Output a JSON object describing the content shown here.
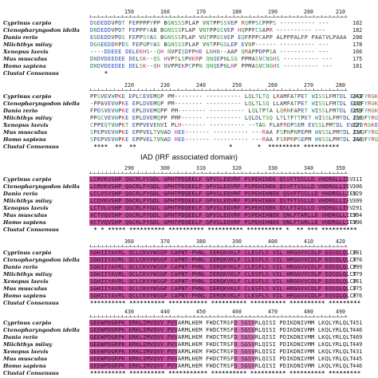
{
  "figure": {
    "domain_label": "IAD (IRF associated domain)",
    "colors": {
      "domain_highlight": "#c9479f",
      "domain_highlight_light": "#e07cc0",
      "seq_red": "#d6313a",
      "seq_blue": "#2c4fc4",
      "seq_green": "#2f9a3a",
      "seq_magenta": "#c42fa8",
      "seq_cyan": "#1c9aa8",
      "ruler": "#999999"
    },
    "blocks": [
      {
        "ruler": [
          "150",
          "160",
          "170",
          "180",
          "190",
          "200",
          "210"
        ],
        "rows": [
          {
            "species": "Cyprinus carpio",
            "seq": "DGDEDDVPDT FEPPPPYPP BGNSSSPLAP VNTPPSSVEP RQPPSCPPPS ---------- ---",
            "pos": "182"
          },
          {
            "species": "Ctenopharyngodon idella",
            "seq": "DNDEDDVPDT FEPPFYAB BGNSSSFLAP VNTPPGSVEP HQPPFCSAPR ---------- ---",
            "pos": "182"
          },
          {
            "species": "Danio rerio",
            "seq": "EGDEDDVPDS FEPPSYAS BGNSSSPLAP VNTPPGSVEP EQFPPPCAPP ALPPPALFP PAATVLPAAA",
            "pos": "200"
          },
          {
            "species": "Miichthys miiuy",
            "seq": "DGGEEDDRPDS FEPGPYAS BGNSSSPLAP VNTPPGSLEP EVNP------ ---------- ---",
            "pos": "178"
          },
          {
            "species": "Xenopus laevis",
            "seq": "----DDEEE DELEKHS--QH NVPISDFPHE LNHN--AAP QRAPPDPPSA ---------- ---",
            "pos": "166"
          },
          {
            "species": "Mus musculus",
            "seq": "DNDVDEEDEE DELSK--QS HVPTLSPVKRP QNQEPNLSG PPMASVCNGHS ---------- ---",
            "pos": "175"
          },
          {
            "species": "Homo sapiens",
            "seq": "DNDVDEEDEE DELSK--QH NVPPEKPCPPN QNQEPNLHF PPMASVCNGHS ---------- ---",
            "pos": "181"
          },
          {
            "species": "Clustal Consensus",
            "seq": "    *                                                              ",
            "pos": ""
          }
        ]
      },
      {
        "ruler": [
          "220",
          "230",
          "240",
          "250",
          "260",
          "270",
          "280"
        ],
        "rows": [
          {
            "species": "Cyprinus carpio",
            "seq": "PPSVEVWPKE EPLCEVEMQP PM-------- ---------- LQLTLTQ LRAMFATPET WISSLFMTDL EVQFYRGKE",
            "pos": "241"
          },
          {
            "species": "Ctenopharyngodon idella",
            "seq": "-PPAVEVWPKE EPLDVEMQP PM-------- ---------- LQLTLSQ LLAMFATPET WISSLFMTDL EVQFYRGKE",
            "pos": "236"
          },
          {
            "species": "Danio rerio",
            "seq": "FPDSVEVWPKE EPLDVEMQPP PM-------- ---------- LQLTPTA LQRNFAPET WISSLFMTDL EVQFYRGKE",
            "pos": "259"
          },
          {
            "species": "Miichthys miiuy",
            "seq": "PPGCVEVWPKE EPLDVEMQPP PMF------ ---------- LQLDLTSQ LTLTFTTPET WISSLFMTDL EVQFYRGKE",
            "pos": "239"
          },
          {
            "species": "Xenopus laevis",
            "seq": "CPPEQTVWPKT EPPVEVENVI PLH------- ---------- --TAG FLAFRDPSEM EVSSLPMTDL EVQFYRGKE",
            "pos": "221"
          },
          {
            "species": "Mus musculus",
            "seq": "SPEPVEVWPKE EPPVELTVNAD HEE------- ---------- ---RAA FSPNPNPEPM WVSSLPMTDL EVQFYRGKE",
            "pos": "234"
          },
          {
            "species": "Homo sapiens",
            "seq": "SPEPVEVWPKE EPPVELTVNAD HEE------- ---------- ---RAA FSRPRPSEPM WVSSLPMTDL EVQFYRGKE",
            "pos": "240"
          },
          {
            "species": "Clustal Consensus",
            "seq": " ****  **  **                          *       *  ********* **********",
            "pos": ""
          }
        ]
      },
      {
        "ruler": [
          "290",
          "300",
          "310",
          "320",
          "330",
          "340",
          "350"
        ],
        "rows": [
          {
            "species": "Cyprinus carpio",
            "seq": "LCMVKVSHP QGCRLFYGDL GPHTPDQEELF GPVSLEQVRF PSPEHINEK QSVFTSSLLD VHDRGLLIEV",
            "pos": "311"
          },
          {
            "species": "Ctenopharyngodon idella",
            "seq": "LCMVKVSHP QGCRLFYGDL GPHTPDQEELF GPVSLEQVRF PSPEHINEK QSVFTSSLLD VHDRGLLIEV",
            "pos": "306"
          },
          {
            "species": "Danio rerio",
            "seq": "LCLVSVSHP QGCRLFYGDL GPHTPDQEELF GPVSLEQVRF PSPEHIHNEK QSVFTSSLLD VHDRGLLIEV",
            "pos": "329"
          },
          {
            "species": "Miichthys miiuy",
            "seq": "LCQVKVSHP QGCRLFYGDL GPHTPDQEELF GPVSLEQVRF PSPEHINEK QSTFTSSLLD VHDRGLLIEV",
            "pos": "309"
          },
          {
            "species": "Xenopus laevis",
            "seq": "LCTVLVSHP QGCRLFYGDL GPHTPDQEELF GPVSLEQVRF PSPEHINEK QSLFTASLLD VHDRGLLIEV",
            "pos": "291"
          },
          {
            "species": "Mus musculus",
            "seq": "VCTVQVSHP QGCRLFYGDL GPHTPDQEELF GPVSLEQVRF PSPEHIHNEK QNLFTARLLD VHDRGLLIEV",
            "pos": "304"
          },
          {
            "species": "Homo sapiens",
            "seq": "VCTVQVSHP QGCRLFYGDL GPHTPDQEELF GPVSLEQVRF PSPEHIHNEK QNLFTARLLD VHDRGLLIEV",
            "pos": "306"
          },
          {
            "species": "Clustal Consensus",
            "seq": " * * ***** ********** ********** ********** ********** *  ** *** **********",
            "pos": ""
          }
        ]
      },
      {
        "ruler": [
          "360",
          "370",
          "380",
          "390",
          "400",
          "410",
          "420"
        ],
        "rows": [
          {
            "species": "Cyprinus carpio",
            "seq": "SGHIIYAVRL QCLCKVYWSGP CAPNT-PHNL IERQKVKLF CLESFLS VIL HRGGVVCDLP EQSQLQLCF",
            "pos": "381"
          },
          {
            "species": "Ctenopharyngodon idella",
            "seq": "SGHIIYAVRL QCLCKVYWSGP CAPNT-PHNL IERQKVKLF CLESFLS VIL HRGGVVCDLP EQSQLQLCF",
            "pos": "376"
          },
          {
            "species": "Danio rerio",
            "seq": "SGHIIYAVRL QCLCKVYWSGP CAPNT-PHNL IERQKVKLF CLESFLS VIL HRGGVVCDLP EQSQLQLCF",
            "pos": "399"
          },
          {
            "species": "Miichthys miiuy",
            "seq": "SGHIIYAVRL QCLCKVYWSGP CAPNT-PHNL IERQKVKLF CLESFLS VIL HRGGVVCDLP EQSQLQLCF",
            "pos": "379"
          },
          {
            "species": "Xenopus laevis",
            "seq": "SGHIIYAVRL QCLCKVYWSGP CAPNT-PHNL IERQKVKLF CLESFLS VIL HRGGVVCDLP EQSQLQLCF",
            "pos": "361"
          },
          {
            "species": "Mus musculus",
            "seq": "SGHIIYAVRL QCLCKVYWSGP CAPNT-PHNL IERQKVKLF CLESFLS VIL HRGGVVCDLP EQSQLQLCF",
            "pos": "375"
          },
          {
            "species": "Homo sapiens",
            "seq": "SGHIIYAVRL QCLCKVYWSGP CAPNT-PHNL IERQKVKLF CLESFLS VIL HRGGVVCDLP EQSQLQLCF",
            "pos": "376"
          },
          {
            "species": "Clustal Consensus",
            "seq": "********** ********** *********** ********** ********** ********** *********",
            "pos": ""
          }
        ]
      },
      {
        "ruler": [
          "430",
          "440",
          "450",
          "460",
          "470",
          "480",
          "490"
        ],
        "rows": [
          {
            "species": "Cyprinus carpio",
            "seq": "GEEWPDGRPK ERKLIMVQVV PVVARMLHEM FHDCTRSFD SGSVRLQISI PDIKDNIVMM LKQLYRLQLT",
            "pos": "451"
          },
          {
            "species": "Ctenopharyngodon idella",
            "seq": "GEEWPDGRPK ERKLIMVQVV PVVARMLHEM FHDCTRSFD SGSVRLQISI PDIKDNIVMM LKQLYRLQLT",
            "pos": "446"
          },
          {
            "species": "Danio rerio",
            "seq": "GEEWPDGRPK ERKLIMVQVV PVVARMLHEM FHDCTRSFD SGSVRLQISI PDIKDNIVMM LKQLYRLQLT",
            "pos": "469"
          },
          {
            "species": "Miichthys miiuy",
            "seq": "GEEWPDGRPK ERKLIMVQVV PVVARMLHEM FHDCTRSFD SGSVRLQISI PDIKDNIVMM LKQLYRLQLT",
            "pos": "449"
          },
          {
            "species": "Xenopus laevis",
            "seq": "GEEWPDGRPK ERKLIMVQVV PVVARMLHEM FHDCTRSFD SGSVRLQISI PDIKDNIVMM LKQLYRLQLT",
            "pos": "431"
          },
          {
            "species": "Mus musculus",
            "seq": "GEEWPDGRPK ERKLIMVQVV PVVARMLHEM FHDCTRSFD SGSVRLQISI PDIKDNIVMM LKQLYRLQLT",
            "pos": "445"
          },
          {
            "species": "Homo sapiens",
            "seq": "GEEWPDGRPK ERKLIMVQVV PVVARMLHEM FHDCTRSFD SGSVRLQISI PDIKDNIVMM LKQLYRLQLT",
            "pos": "446"
          },
          {
            "species": "Clustal Consensus",
            "seq": "********** ********** *********** ********** ********** ********** *********",
            "pos": ""
          }
        ]
      }
    ]
  }
}
